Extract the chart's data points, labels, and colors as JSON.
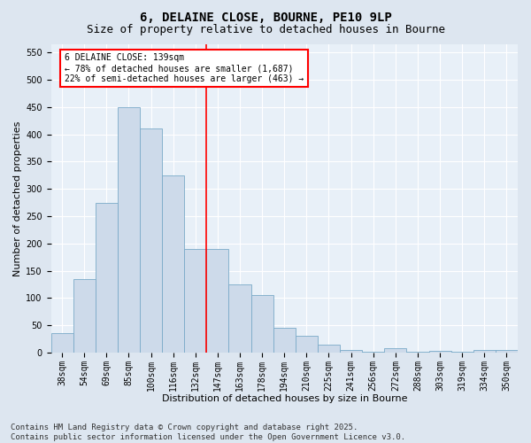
{
  "title": "6, DELAINE CLOSE, BOURNE, PE10 9LP",
  "subtitle": "Size of property relative to detached houses in Bourne",
  "xlabel": "Distribution of detached houses by size in Bourne",
  "ylabel": "Number of detached properties",
  "categories": [
    "38sqm",
    "54sqm",
    "69sqm",
    "85sqm",
    "100sqm",
    "116sqm",
    "132sqm",
    "147sqm",
    "163sqm",
    "178sqm",
    "194sqm",
    "210sqm",
    "225sqm",
    "241sqm",
    "256sqm",
    "272sqm",
    "288sqm",
    "303sqm",
    "319sqm",
    "334sqm",
    "350sqm"
  ],
  "values": [
    35,
    135,
    275,
    450,
    410,
    325,
    190,
    190,
    125,
    105,
    45,
    30,
    15,
    5,
    2,
    8,
    2,
    3,
    2,
    5,
    4
  ],
  "bar_color": "#cddaea",
  "bar_edge_color": "#7aaac8",
  "vline_index": 7,
  "vline_color": "red",
  "ylim": [
    0,
    565
  ],
  "yticks": [
    0,
    50,
    100,
    150,
    200,
    250,
    300,
    350,
    400,
    450,
    500,
    550
  ],
  "annotation_title": "6 DELAINE CLOSE: 139sqm",
  "annotation_line1": "← 78% of detached houses are smaller (1,687)",
  "annotation_line2": "22% of semi-detached houses are larger (463) →",
  "annotation_box_color": "#ffffff",
  "annotation_box_edge": "red",
  "footer1": "Contains HM Land Registry data © Crown copyright and database right 2025.",
  "footer2": "Contains public sector information licensed under the Open Government Licence v3.0.",
  "bg_color": "#dde6f0",
  "plot_bg_color": "#e8f0f8",
  "title_fontsize": 10,
  "subtitle_fontsize": 9,
  "axis_label_fontsize": 8,
  "tick_fontsize": 7,
  "annotation_fontsize": 7,
  "footer_fontsize": 6.5
}
